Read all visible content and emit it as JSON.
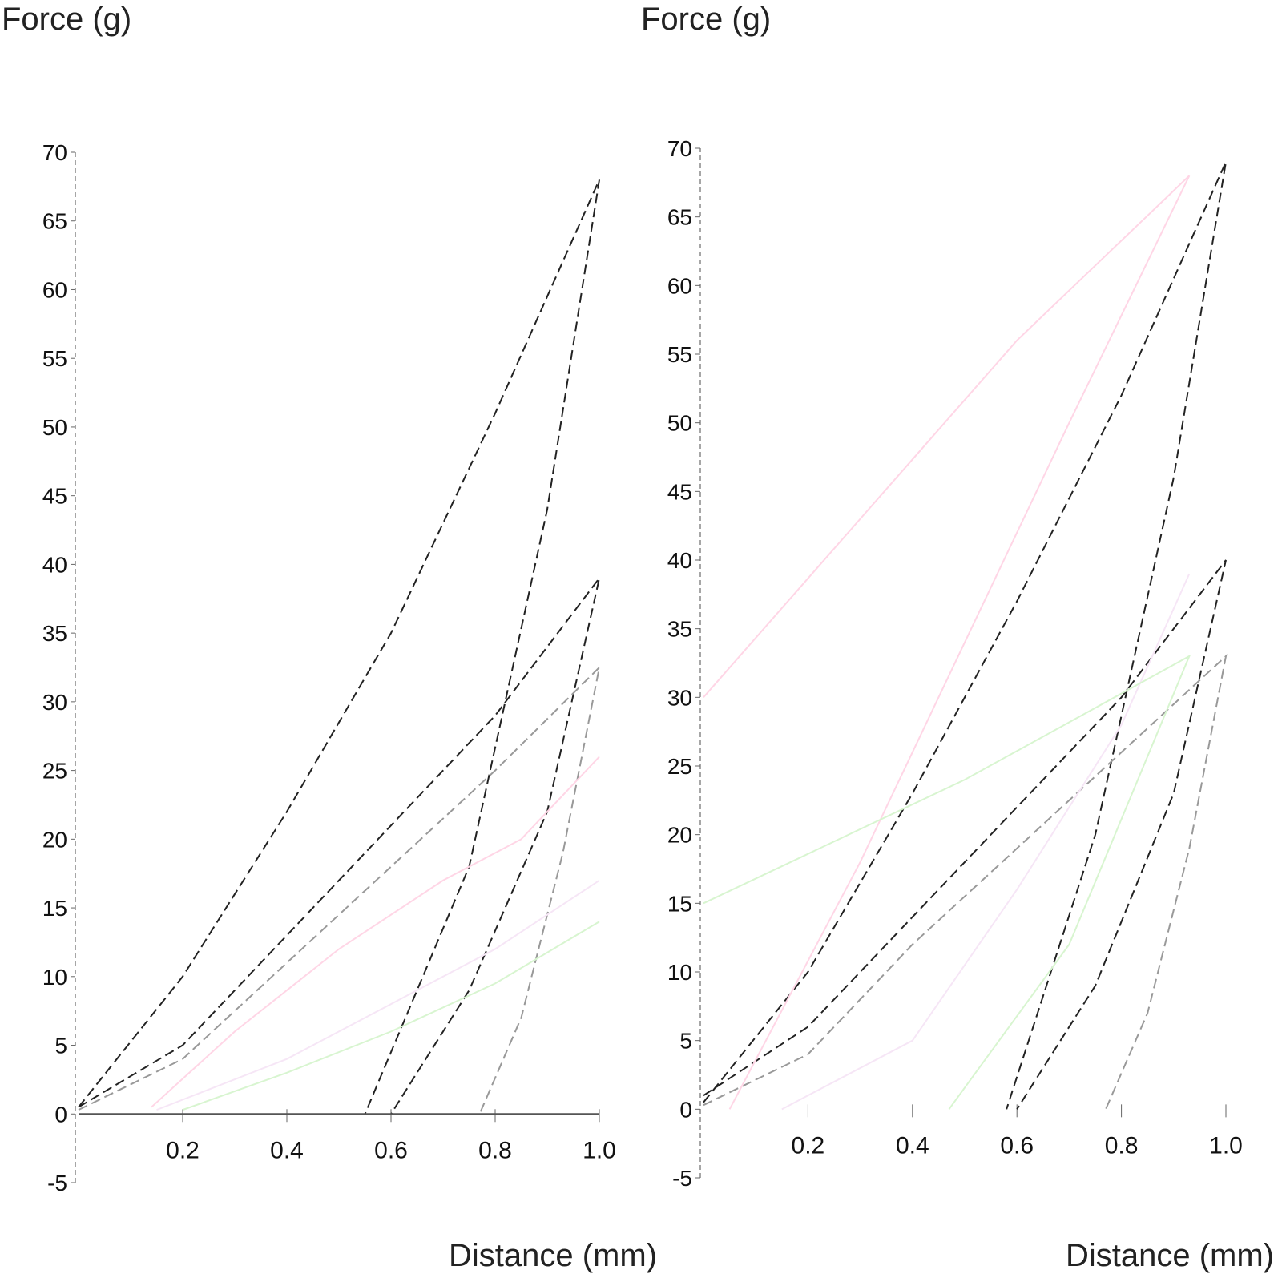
{
  "chart_data": [
    {
      "type": "line",
      "ylabel": "Force (g)",
      "xlabel": "Distance (mm)",
      "xlim": [
        0,
        1.0
      ],
      "ylim": [
        -5,
        70
      ],
      "xticks": [
        "0.2",
        "0.4",
        "0.6",
        "0.8",
        "1.0"
      ],
      "yticks": [
        "-5",
        "0",
        "5",
        "10",
        "15",
        "20",
        "25",
        "30",
        "35",
        "40",
        "45",
        "50",
        "55",
        "60",
        "65",
        "70"
      ],
      "grid": false,
      "series": [
        {
          "style": "dashed",
          "color": "#222222",
          "x": [
            0,
            0.2,
            0.4,
            0.6,
            0.8,
            1.0,
            0.9,
            0.75,
            0.55
          ],
          "y": [
            0.5,
            10,
            22,
            35,
            51,
            68,
            44,
            18,
            0
          ]
        },
        {
          "style": "dashed",
          "color": "#222222",
          "x": [
            0,
            0.2,
            0.4,
            0.6,
            0.8,
            1.0,
            0.9,
            0.75,
            0.6
          ],
          "y": [
            0.5,
            5,
            13,
            21,
            29,
            39,
            22,
            9,
            0
          ]
        },
        {
          "style": "dashed",
          "color": "#999999",
          "x": [
            0,
            0.2,
            0.4,
            0.6,
            0.8,
            1.0,
            0.93,
            0.85,
            0.77
          ],
          "y": [
            0.3,
            4,
            11,
            18,
            25,
            32.5,
            19,
            7,
            0
          ]
        },
        {
          "style": "solid",
          "color": "#ffd6e6",
          "x": [
            0.14,
            0.3,
            0.5,
            0.7,
            0.85,
            1.0
          ],
          "y": [
            0.5,
            6,
            12,
            17,
            20,
            26
          ]
        },
        {
          "style": "solid",
          "color": "#f6e6f6",
          "x": [
            0.15,
            0.4,
            0.6,
            0.8,
            1.0
          ],
          "y": [
            0.3,
            4,
            8,
            12,
            17
          ]
        },
        {
          "style": "solid",
          "color": "#d8f5d0",
          "x": [
            0.2,
            0.4,
            0.6,
            0.8,
            1.0
          ],
          "y": [
            0.3,
            3,
            6,
            9.5,
            14
          ]
        },
        {
          "style": "solid",
          "color": "#555555",
          "x": [
            0,
            1.0
          ],
          "y": [
            0,
            0
          ]
        }
      ]
    },
    {
      "type": "line",
      "ylabel": "Force (g)",
      "xlabel": "Distance (mm)",
      "xlim": [
        0,
        1.0
      ],
      "ylim": [
        -5,
        70
      ],
      "xticks": [
        "0.2",
        "0.4",
        "0.6",
        "0.8",
        "1.0"
      ],
      "yticks": [
        "-5",
        "0",
        "5",
        "10",
        "15",
        "20",
        "25",
        "30",
        "35",
        "40",
        "45",
        "50",
        "55",
        "60",
        "65",
        "70"
      ],
      "grid": false,
      "series": [
        {
          "style": "dashed",
          "color": "#222222",
          "x": [
            0,
            0.2,
            0.4,
            0.6,
            0.8,
            1.0,
            0.9,
            0.75,
            0.58
          ],
          "y": [
            0.5,
            10,
            23,
            37,
            52,
            69,
            46,
            20,
            0
          ]
        },
        {
          "style": "dashed",
          "color": "#222222",
          "x": [
            0,
            0.2,
            0.4,
            0.6,
            0.8,
            1.0,
            0.9,
            0.75,
            0.6
          ],
          "y": [
            1,
            6,
            14,
            22,
            30,
            40,
            23,
            9,
            0
          ]
        },
        {
          "style": "dashed",
          "color": "#999999",
          "x": [
            0,
            0.2,
            0.4,
            0.6,
            0.8,
            1.0,
            0.93,
            0.85,
            0.77
          ],
          "y": [
            0.3,
            4,
            12,
            19,
            26,
            33,
            19,
            7,
            0
          ]
        },
        {
          "style": "solid",
          "color": "#ffd6e6",
          "x": [
            0.05,
            0.3,
            0.5,
            0.7,
            0.93,
            0.6,
            0.3,
            0
          ],
          "y": [
            0,
            18,
            34,
            50,
            68,
            56,
            43,
            30
          ]
        },
        {
          "style": "solid",
          "color": "#f6e6f6",
          "x": [
            0.15,
            0.4,
            0.6,
            0.8,
            0.93
          ],
          "y": [
            0,
            5,
            16,
            28,
            39
          ]
        },
        {
          "style": "solid",
          "color": "#d8f5d0",
          "x": [
            0.47,
            0.7,
            0.93,
            0.5,
            0
          ],
          "y": [
            0,
            12,
            33,
            24,
            15
          ]
        }
      ]
    }
  ]
}
